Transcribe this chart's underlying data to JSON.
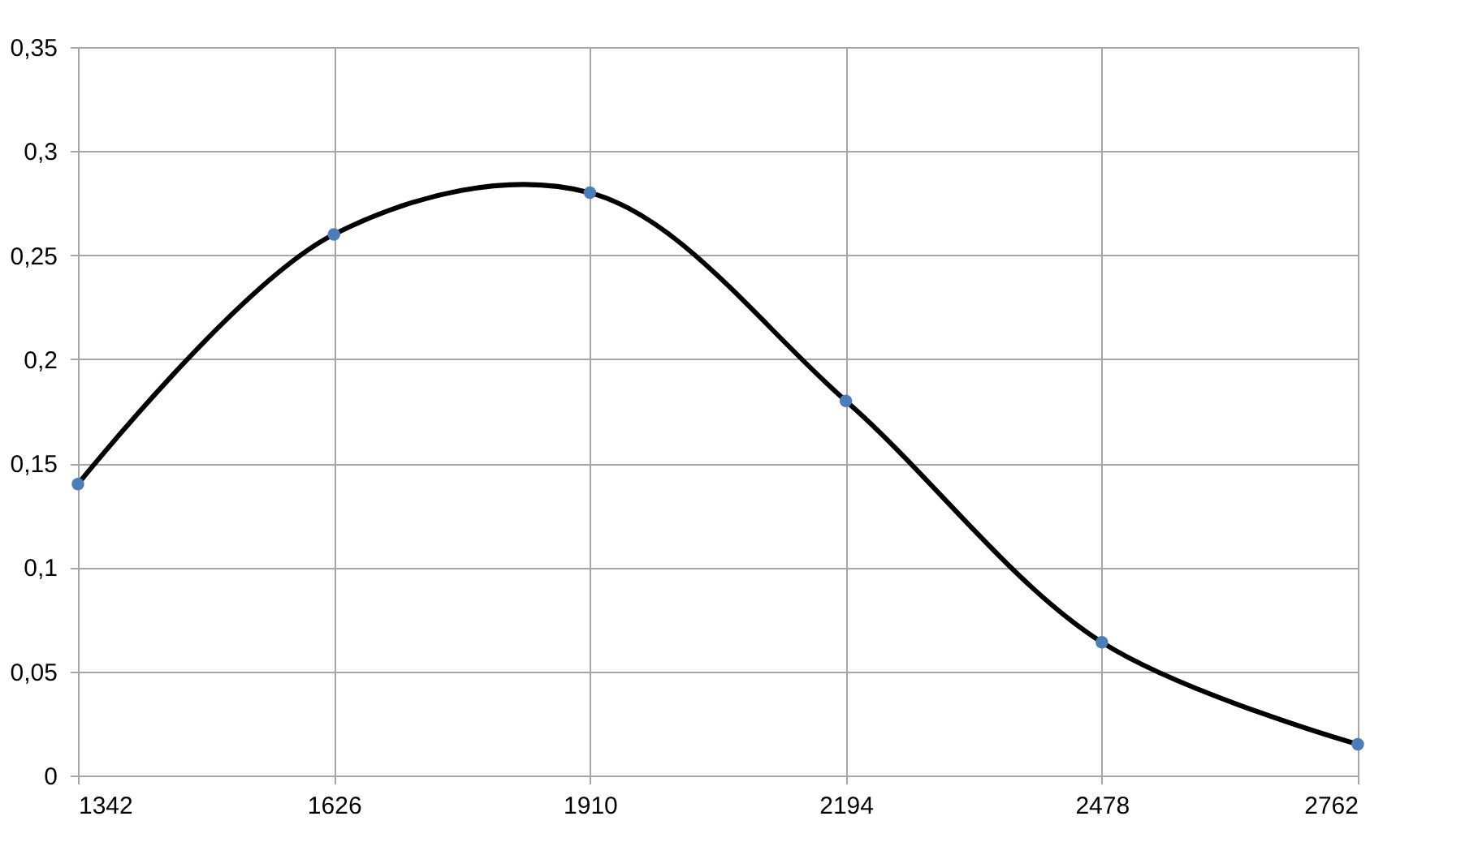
{
  "chart_data": {
    "type": "line",
    "x": [
      1342,
      1626,
      1910,
      2194,
      2478,
      2762
    ],
    "series": [
      {
        "color": "#000000",
        "marker": "none",
        "line_style": "solid",
        "values": [
          0.14,
          0.26,
          0.28,
          0.18,
          0.064,
          0.015
        ]
      },
      {
        "type": "scatter",
        "color": "#4a7ebb",
        "marker": "circle",
        "values": [
          0.14,
          0.26,
          0.28,
          0.18,
          0.064,
          0.015
        ]
      }
    ],
    "xlim": [
      1342,
      2762
    ],
    "xticks": [
      1342,
      1626,
      1910,
      2194,
      2478,
      2762
    ],
    "ylim": [
      0,
      0.35
    ],
    "yticks": [
      {
        "value": 0,
        "label": "0"
      },
      {
        "value": 0.05,
        "label": "0,05"
      },
      {
        "value": 0.1,
        "label": "0,1"
      },
      {
        "value": 0.15,
        "label": "0,15"
      },
      {
        "value": 0.2,
        "label": "0,2"
      },
      {
        "value": 0.25,
        "label": "0,25"
      },
      {
        "value": 0.3,
        "label": "0,3"
      },
      {
        "value": 0.35,
        "label": "0,35"
      }
    ],
    "grid": true
  }
}
